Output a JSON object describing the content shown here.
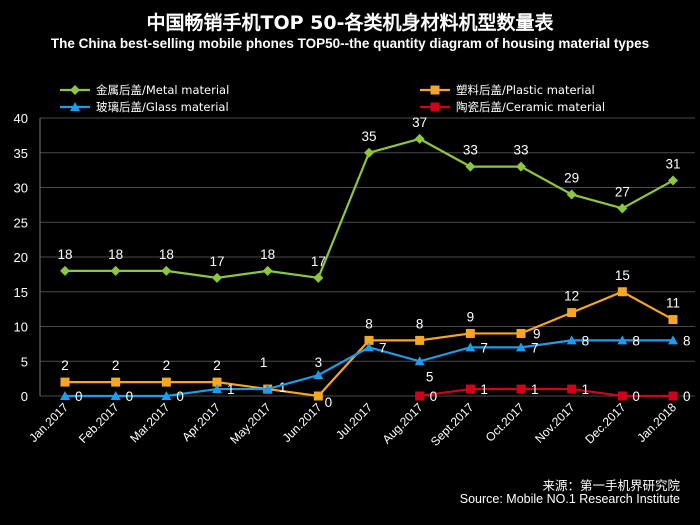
{
  "title_cn": "中国畅销手机TOP 50-各类机身材料机型数量表",
  "title_en": "The China best-selling mobile phones TOP50--the quantity diagram of housing material types",
  "source_cn": "来源：第一手机界研究院",
  "source_en": "Source: Mobile NO.1 Research Institute",
  "chart_data": {
    "type": "line",
    "categories": [
      "Jan.2017",
      "Feb.2017",
      "Mar.2017",
      "Apr.2017",
      "May.2017",
      "Jun.2017",
      "Jul.2017",
      "Aug.2017",
      "Sept.2017",
      "Oct.2017",
      "Nov.2017",
      "Dec.2017",
      "Jan.2018"
    ],
    "ylim": [
      0,
      40
    ],
    "yticks": [
      "0",
      "5",
      "10",
      "15",
      "20",
      "25",
      "30",
      "35",
      "40"
    ],
    "grid": true,
    "legend_position": "top",
    "series": [
      {
        "name": "金属后盖/Metal material",
        "color": "#8dc63f",
        "marker": "diamond",
        "values": [
          18,
          18,
          18,
          17,
          18,
          17,
          35,
          37,
          33,
          33,
          29,
          27,
          31
        ],
        "labels": [
          "18",
          "18",
          "18",
          "17",
          "18",
          "17",
          "35",
          "37",
          "33",
          "33",
          "29",
          "27",
          "31"
        ]
      },
      {
        "name": "塑料后盖/Plastic material",
        "color": "#f5a623",
        "marker": "square",
        "values": [
          2,
          2,
          2,
          2,
          1,
          0,
          8,
          8,
          9,
          9,
          12,
          15,
          11
        ],
        "labels": [
          "2",
          "2",
          "2",
          "2",
          "1",
          "0",
          "8",
          "8",
          "9",
          "9",
          "12",
          "15",
          "11"
        ]
      },
      {
        "name": "玻璃后盖/Glass material",
        "color": "#1e9be9",
        "marker": "triangle",
        "values": [
          0,
          0,
          0,
          1,
          1,
          3,
          7,
          5,
          7,
          7,
          8,
          8,
          8
        ],
        "labels": [
          "0",
          "0",
          "0",
          "1",
          "1",
          "3",
          "7",
          "5",
          "7",
          "7",
          "8",
          "8",
          "8"
        ]
      },
      {
        "name": "陶瓷后盖/Ceramic material",
        "color": "#d0021b",
        "marker": "square",
        "values": [
          null,
          null,
          null,
          null,
          null,
          null,
          null,
          0,
          1,
          1,
          1,
          0,
          0
        ],
        "labels": [
          "",
          "",
          "",
          "",
          "",
          "",
          "",
          "0",
          "1",
          "1",
          "1",
          "0",
          "0"
        ]
      }
    ]
  }
}
